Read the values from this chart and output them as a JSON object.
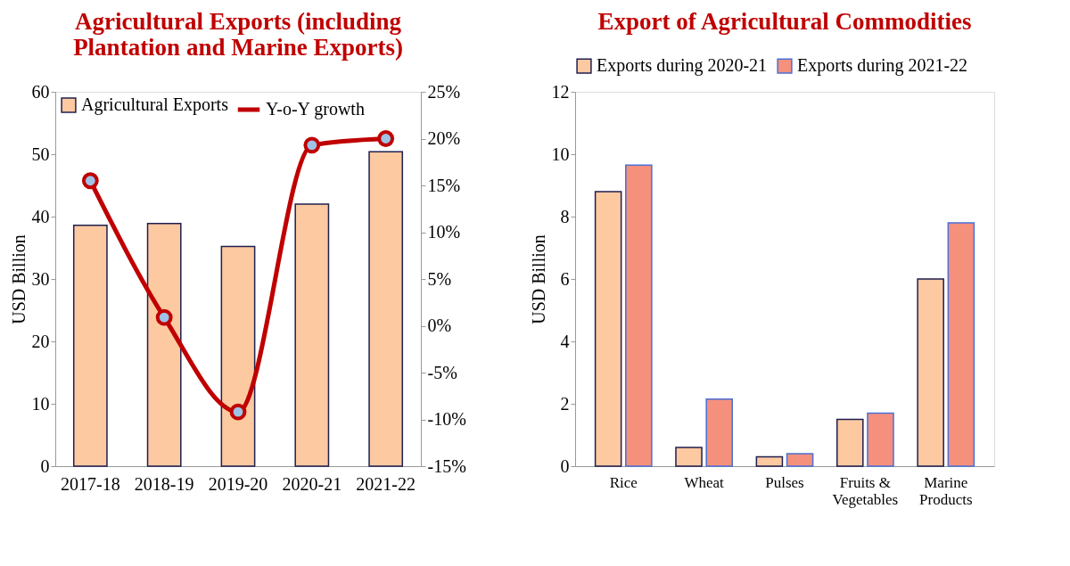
{
  "chart_data": [
    {
      "type": "bar",
      "title": "Agricultural Exports (including Plantation and Marine Exports)",
      "categories": [
        "2017-18",
        "2018-19",
        "2019-20",
        "2020-21",
        "2021-22"
      ],
      "series": [
        {
          "name": "Agricultural Exports",
          "type": "bar",
          "color": "#fdc9a0",
          "values": [
            38.6,
            38.9,
            35.2,
            42.0,
            50.4
          ]
        },
        {
          "name": "Y-o-Y growth",
          "type": "line",
          "axis": "y2",
          "color": "#c00000",
          "values": [
            15.5,
            0.9,
            -9.2,
            19.3,
            20.0
          ]
        }
      ],
      "ylabel": "USD Billion",
      "ylim": [
        0,
        60
      ],
      "yticks": [
        0,
        10,
        20,
        30,
        40,
        50,
        60
      ],
      "y2lim": [
        -15,
        25
      ],
      "y2ticks": [
        {
          "value": -15,
          "label": "-15%"
        },
        {
          "value": -10,
          "label": "-10%"
        },
        {
          "value": -5,
          "label": "-5%"
        },
        {
          "value": 0,
          "label": "0%"
        },
        {
          "value": 5,
          "label": "5%"
        },
        {
          "value": 10,
          "label": "10%"
        },
        {
          "value": 15,
          "label": "15%"
        },
        {
          "value": 20,
          "label": "20%"
        },
        {
          "value": 25,
          "label": "25%"
        }
      ],
      "legend": "top left",
      "marker": "circle",
      "grid": false
    },
    {
      "type": "bar",
      "title": "Export of Agricultural Commodities",
      "categories": [
        "Rice",
        "Wheat",
        "Pulses",
        "Fruits & Vegetables",
        "Marine Products"
      ],
      "series": [
        {
          "name": "Exports during 2020-21",
          "color": "#fdc9a0",
          "values": [
            8.8,
            0.6,
            0.3,
            1.5,
            6.0
          ]
        },
        {
          "name": "Exports during 2021-22",
          "color": "#f4907c",
          "values": [
            9.65,
            2.15,
            0.4,
            1.7,
            7.8
          ]
        }
      ],
      "ylabel": "USD Billion",
      "ylim": [
        0,
        12
      ],
      "yticks": [
        0,
        2,
        4,
        6,
        8,
        10,
        12
      ],
      "legend": "top",
      "grid": false
    }
  ]
}
